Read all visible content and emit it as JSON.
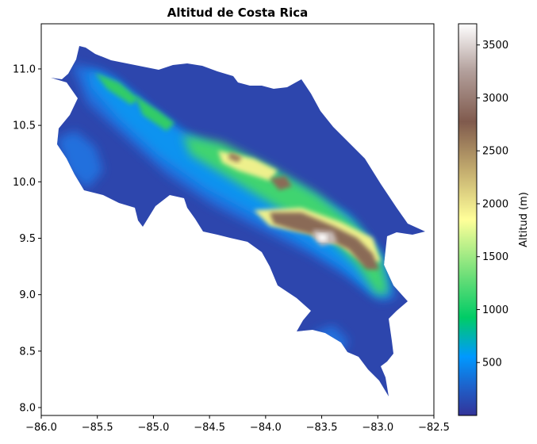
{
  "title": "Altitud de Costa Rica",
  "colorbar": {
    "label": "Altitud (m)",
    "min": 0,
    "max": 3700,
    "ticks": [
      {
        "value": 500,
        "label": "500"
      },
      {
        "value": 1000,
        "label": "1000"
      },
      {
        "value": 1500,
        "label": "1500"
      },
      {
        "value": 2000,
        "label": "2000"
      },
      {
        "value": 2500,
        "label": "2500"
      },
      {
        "value": 3000,
        "label": "3000"
      },
      {
        "value": 3500,
        "label": "3500"
      }
    ],
    "colormap": "terrain"
  },
  "x_axis": {
    "range": [
      -86.0,
      -82.5
    ],
    "ticks": [
      {
        "value": -86.0,
        "label": "−86.0"
      },
      {
        "value": -85.5,
        "label": "−85.5"
      },
      {
        "value": -85.0,
        "label": "−85.0"
      },
      {
        "value": -84.5,
        "label": "−84.5"
      },
      {
        "value": -84.0,
        "label": "−84.0"
      },
      {
        "value": -83.5,
        "label": "−83.5"
      },
      {
        "value": -83.0,
        "label": "−83.0"
      },
      {
        "value": -82.5,
        "label": "−82.5"
      }
    ]
  },
  "y_axis": {
    "range": [
      7.93,
      11.4
    ],
    "ticks": [
      {
        "value": 8.0,
        "label": "8.0"
      },
      {
        "value": 8.5,
        "label": "8.5"
      },
      {
        "value": 9.0,
        "label": "9.0"
      },
      {
        "value": 9.5,
        "label": "9.5"
      },
      {
        "value": 10.0,
        "label": "10.0"
      },
      {
        "value": 10.5,
        "label": "10.5"
      },
      {
        "value": 11.0,
        "label": "11.0"
      }
    ]
  }
}
